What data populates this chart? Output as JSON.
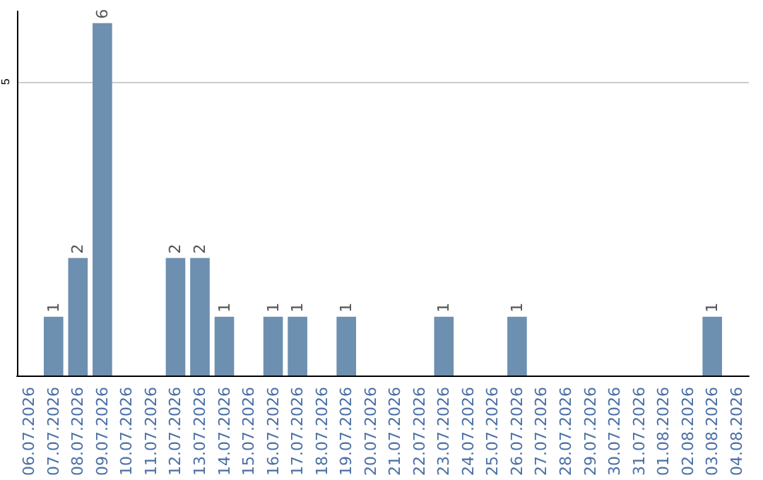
{
  "chart_data": {
    "type": "bar",
    "categories": [
      "06.07.2026",
      "07.07.2026",
      "08.07.2026",
      "09.07.2026",
      "10.07.2026",
      "11.07.2026",
      "12.07.2026",
      "13.07.2026",
      "14.07.2026",
      "15.07.2026",
      "16.07.2026",
      "17.07.2026",
      "18.07.2026",
      "19.07.2026",
      "20.07.2026",
      "21.07.2026",
      "22.07.2026",
      "23.07.2026",
      "24.07.2026",
      "25.07.2026",
      "26.07.2026",
      "27.07.2026",
      "28.07.2026",
      "29.07.2026",
      "30.07.2026",
      "31.07.2026",
      "01.08.2026",
      "02.08.2026",
      "03.08.2026",
      "04.08.2026"
    ],
    "values": [
      0,
      1,
      2,
      6,
      0,
      0,
      2,
      2,
      1,
      0,
      1,
      1,
      0,
      1,
      0,
      0,
      0,
      1,
      0,
      0,
      1,
      0,
      0,
      0,
      0,
      0,
      0,
      0,
      1,
      0
    ],
    "value_labels": [
      null,
      "1",
      "2",
      "6",
      null,
      null,
      "2",
      "2",
      "1",
      null,
      "1",
      "1",
      null,
      "1",
      null,
      null,
      null,
      "1",
      null,
      null,
      "1",
      null,
      null,
      null,
      null,
      null,
      null,
      null,
      "1",
      null
    ],
    "color": "#6d8fb0",
    "ylim": [
      0,
      6.2
    ],
    "yticks": [
      5
    ],
    "grid": "y"
  }
}
